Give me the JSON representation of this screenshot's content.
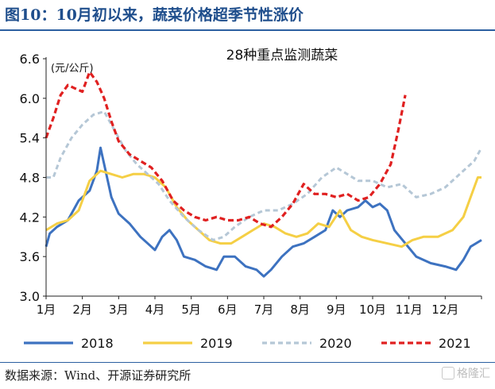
{
  "figure_title": "图10：10月初以来，蔬菜价格超季节性涨价",
  "source_note": "数据来源：Wind、开源证券研究所",
  "watermark": "格隆汇",
  "chart_data": {
    "type": "line",
    "title": "28种重点监测蔬菜",
    "unit_label": "(元/公斤)",
    "ylim": [
      3.0,
      6.6
    ],
    "yticks": [
      "6.6",
      "6.0",
      "5.4",
      "4.8",
      "4.2",
      "3.6",
      "3.0"
    ],
    "xticks": [
      "1月",
      "2月",
      "3月",
      "4月",
      "5月",
      "6月",
      "7月",
      "8月",
      "9月",
      "10月",
      "11月",
      "12月"
    ],
    "xlim": [
      1,
      13
    ],
    "legend_position": "bottom",
    "series": [
      {
        "name": "2018",
        "color": "#3d72c0",
        "dash": "",
        "points": [
          [
            1.0,
            3.75
          ],
          [
            1.1,
            3.95
          ],
          [
            1.3,
            4.05
          ],
          [
            1.6,
            4.15
          ],
          [
            1.9,
            4.45
          ],
          [
            2.2,
            4.6
          ],
          [
            2.4,
            4.9
          ],
          [
            2.5,
            5.25
          ],
          [
            2.6,
            5.0
          ],
          [
            2.8,
            4.5
          ],
          [
            3.0,
            4.25
          ],
          [
            3.3,
            4.1
          ],
          [
            3.6,
            3.9
          ],
          [
            3.9,
            3.75
          ],
          [
            4.0,
            3.7
          ],
          [
            4.2,
            3.9
          ],
          [
            4.4,
            4.0
          ],
          [
            4.6,
            3.85
          ],
          [
            4.8,
            3.6
          ],
          [
            5.1,
            3.55
          ],
          [
            5.4,
            3.45
          ],
          [
            5.7,
            3.4
          ],
          [
            5.9,
            3.6
          ],
          [
            6.2,
            3.6
          ],
          [
            6.5,
            3.45
          ],
          [
            6.8,
            3.4
          ],
          [
            7.0,
            3.3
          ],
          [
            7.2,
            3.4
          ],
          [
            7.5,
            3.6
          ],
          [
            7.8,
            3.75
          ],
          [
            8.1,
            3.8
          ],
          [
            8.4,
            3.9
          ],
          [
            8.7,
            4.0
          ],
          [
            8.9,
            4.3
          ],
          [
            9.1,
            4.2
          ],
          [
            9.3,
            4.3
          ],
          [
            9.6,
            4.35
          ],
          [
            9.8,
            4.45
          ],
          [
            10.0,
            4.35
          ],
          [
            10.2,
            4.4
          ],
          [
            10.4,
            4.3
          ],
          [
            10.6,
            4.0
          ],
          [
            10.9,
            3.8
          ],
          [
            11.2,
            3.6
          ],
          [
            11.6,
            3.5
          ],
          [
            12.0,
            3.45
          ],
          [
            12.3,
            3.4
          ],
          [
            12.5,
            3.55
          ],
          [
            12.7,
            3.75
          ],
          [
            13.0,
            3.85
          ]
        ]
      },
      {
        "name": "2019",
        "color": "#f5cf45",
        "dash": "",
        "points": [
          [
            1.0,
            4.0
          ],
          [
            1.3,
            4.1
          ],
          [
            1.6,
            4.15
          ],
          [
            1.9,
            4.3
          ],
          [
            2.2,
            4.75
          ],
          [
            2.5,
            4.9
          ],
          [
            2.8,
            4.85
          ],
          [
            3.1,
            4.8
          ],
          [
            3.4,
            4.85
          ],
          [
            3.7,
            4.85
          ],
          [
            4.0,
            4.8
          ],
          [
            4.3,
            4.65
          ],
          [
            4.6,
            4.35
          ],
          [
            4.9,
            4.15
          ],
          [
            5.2,
            4.0
          ],
          [
            5.5,
            3.85
          ],
          [
            5.8,
            3.8
          ],
          [
            6.1,
            3.8
          ],
          [
            6.4,
            3.9
          ],
          [
            6.7,
            4.0
          ],
          [
            7.0,
            4.1
          ],
          [
            7.3,
            4.05
          ],
          [
            7.6,
            3.95
          ],
          [
            7.9,
            3.9
          ],
          [
            8.2,
            3.95
          ],
          [
            8.5,
            4.1
          ],
          [
            8.8,
            4.05
          ],
          [
            9.1,
            4.3
          ],
          [
            9.4,
            4.0
          ],
          [
            9.7,
            3.9
          ],
          [
            10.0,
            3.85
          ],
          [
            10.4,
            3.8
          ],
          [
            10.8,
            3.75
          ],
          [
            11.1,
            3.85
          ],
          [
            11.4,
            3.9
          ],
          [
            11.8,
            3.9
          ],
          [
            12.2,
            4.0
          ],
          [
            12.5,
            4.2
          ],
          [
            12.7,
            4.5
          ],
          [
            12.9,
            4.8
          ],
          [
            13.0,
            4.8
          ]
        ]
      },
      {
        "name": "2020",
        "color": "#b5c7d6",
        "dash": "6,4",
        "points": [
          [
            1.0,
            4.8
          ],
          [
            1.2,
            4.8
          ],
          [
            1.4,
            5.1
          ],
          [
            1.7,
            5.4
          ],
          [
            2.0,
            5.6
          ],
          [
            2.3,
            5.75
          ],
          [
            2.6,
            5.8
          ],
          [
            2.9,
            5.5
          ],
          [
            3.2,
            5.2
          ],
          [
            3.5,
            5.0
          ],
          [
            3.8,
            4.85
          ],
          [
            4.1,
            4.7
          ],
          [
            4.4,
            4.45
          ],
          [
            4.8,
            4.2
          ],
          [
            5.2,
            4.0
          ],
          [
            5.6,
            3.85
          ],
          [
            5.9,
            3.9
          ],
          [
            6.2,
            4.05
          ],
          [
            6.6,
            4.2
          ],
          [
            7.0,
            4.3
          ],
          [
            7.4,
            4.3
          ],
          [
            7.8,
            4.4
          ],
          [
            8.2,
            4.55
          ],
          [
            8.6,
            4.8
          ],
          [
            9.0,
            4.95
          ],
          [
            9.3,
            4.85
          ],
          [
            9.6,
            4.75
          ],
          [
            10.0,
            4.75
          ],
          [
            10.4,
            4.65
          ],
          [
            10.8,
            4.7
          ],
          [
            11.2,
            4.5
          ],
          [
            11.6,
            4.55
          ],
          [
            12.0,
            4.65
          ],
          [
            12.4,
            4.85
          ],
          [
            12.8,
            5.05
          ],
          [
            13.0,
            5.25
          ]
        ]
      },
      {
        "name": "2021",
        "color": "#e02020",
        "dash": "7,4",
        "points": [
          [
            1.0,
            5.4
          ],
          [
            1.2,
            5.7
          ],
          [
            1.4,
            6.05
          ],
          [
            1.6,
            6.2
          ],
          [
            1.8,
            6.15
          ],
          [
            2.0,
            6.1
          ],
          [
            2.2,
            6.4
          ],
          [
            2.4,
            6.25
          ],
          [
            2.6,
            6.0
          ],
          [
            2.8,
            5.65
          ],
          [
            3.0,
            5.35
          ],
          [
            3.3,
            5.15
          ],
          [
            3.6,
            5.05
          ],
          [
            3.9,
            4.95
          ],
          [
            4.2,
            4.75
          ],
          [
            4.5,
            4.45
          ],
          [
            4.8,
            4.3
          ],
          [
            5.1,
            4.2
          ],
          [
            5.4,
            4.15
          ],
          [
            5.7,
            4.2
          ],
          [
            6.0,
            4.15
          ],
          [
            6.3,
            4.15
          ],
          [
            6.6,
            4.2
          ],
          [
            6.9,
            4.1
          ],
          [
            7.2,
            4.05
          ],
          [
            7.5,
            4.2
          ],
          [
            7.8,
            4.4
          ],
          [
            8.1,
            4.7
          ],
          [
            8.4,
            4.55
          ],
          [
            8.7,
            4.55
          ],
          [
            9.0,
            4.5
          ],
          [
            9.3,
            4.55
          ],
          [
            9.6,
            4.45
          ],
          [
            9.9,
            4.5
          ],
          [
            10.2,
            4.7
          ],
          [
            10.5,
            5.0
          ],
          [
            10.7,
            5.5
          ],
          [
            10.9,
            6.05
          ]
        ]
      }
    ]
  }
}
